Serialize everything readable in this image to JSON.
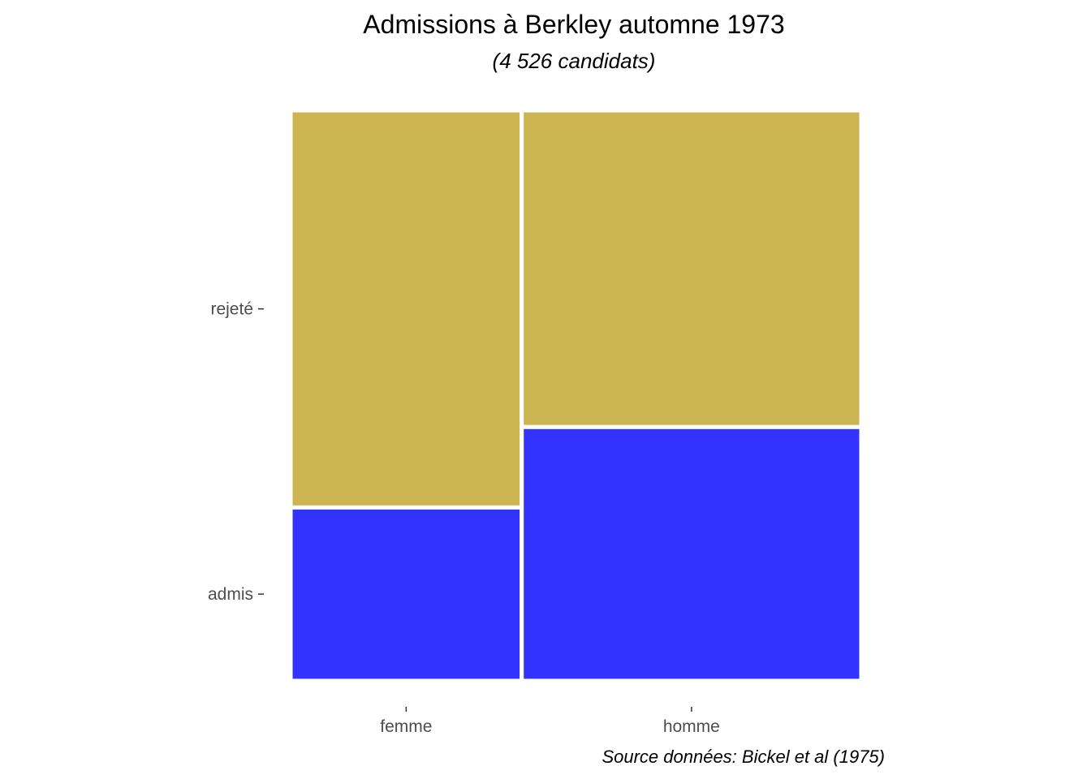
{
  "chart_data": {
    "type": "mosaic",
    "title": "Admissions à Berkley automne 1973",
    "subtitle": "(4 526 candidats)",
    "caption": "Source données: Bickel et al (1975)",
    "x_categories": [
      "femme",
      "homme"
    ],
    "y_categories": [
      "admis",
      "rejeté"
    ],
    "x_proportions": [
      0.405,
      0.595
    ],
    "y_proportions": [
      {
        "x": "femme",
        "values": [
          0.304,
          0.696
        ]
      },
      {
        "x": "homme",
        "values": [
          0.445,
          0.555
        ]
      }
    ],
    "colors": {
      "admis": "#3333ff",
      "rejeté": "#ccb450"
    },
    "legend": "none",
    "grid": false
  }
}
